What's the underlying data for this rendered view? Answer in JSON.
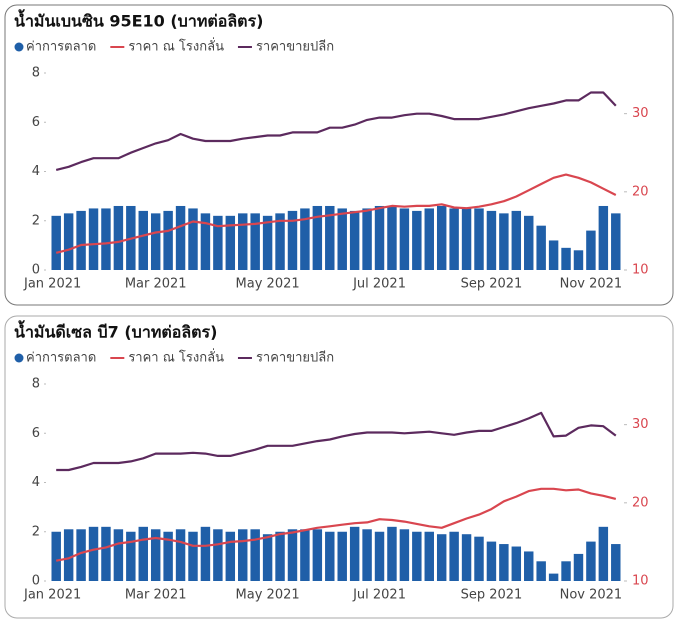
{
  "chart_data": [
    {
      "type": "bar-line",
      "title": "น้ำมันเบนซิน 95E10 (บาทต่อลิตร)",
      "categories": [
        "Jan 2021",
        null,
        null,
        null,
        null,
        null,
        null,
        null,
        "Mar 2021",
        null,
        null,
        null,
        null,
        null,
        null,
        null,
        null,
        "May 2021",
        null,
        null,
        null,
        null,
        null,
        null,
        null,
        null,
        "Jul 2021",
        null,
        null,
        null,
        null,
        null,
        null,
        null,
        null,
        "Sep 2021",
        null,
        null,
        null,
        null,
        null,
        null,
        null,
        "Nov 2021",
        null,
        null
      ],
      "ylim": [
        0,
        8
      ],
      "yticks": [
        0,
        2,
        4,
        6,
        8
      ],
      "y2lim": [
        10,
        35.2
      ],
      "y2ticks": [
        10,
        20,
        30
      ],
      "y2color": "#d9464f",
      "series": [
        {
          "name": "ค่าการตลาด",
          "type": "bar",
          "color": "#1f5fa8",
          "values": [
            2.2,
            2.3,
            2.4,
            2.5,
            2.5,
            2.6,
            2.6,
            2.4,
            2.3,
            2.4,
            2.6,
            2.5,
            2.3,
            2.2,
            2.2,
            2.3,
            2.3,
            2.2,
            2.3,
            2.4,
            2.5,
            2.6,
            2.6,
            2.5,
            2.4,
            2.5,
            2.6,
            2.6,
            2.5,
            2.4,
            2.5,
            2.6,
            2.5,
            2.5,
            2.5,
            2.4,
            2.3,
            2.4,
            2.2,
            1.8,
            1.2,
            0.9,
            0.8,
            1.6,
            2.6,
            2.3
          ]
        },
        {
          "name": "ราคา ณ โรงกลั่น",
          "type": "line",
          "axis": "y2",
          "color": "#d9464f",
          "values": [
            12.2,
            12.6,
            13.2,
            13.3,
            13.4,
            13.6,
            14.0,
            14.4,
            14.8,
            15.0,
            15.6,
            16.2,
            16.0,
            15.6,
            15.7,
            15.8,
            15.9,
            16.1,
            16.3,
            16.3,
            16.5,
            16.8,
            17.0,
            17.2,
            17.4,
            17.6,
            17.9,
            18.2,
            18.1,
            18.2,
            18.2,
            18.4,
            18.0,
            17.9,
            18.1,
            18.4,
            18.8,
            19.4,
            20.2,
            21.0,
            21.8,
            22.2,
            21.8,
            21.2,
            20.4,
            19.6
          ]
        },
        {
          "name": "ราคาขายปลีก",
          "type": "line",
          "axis": "y2",
          "color": "#5c2a5e",
          "values": [
            22.8,
            23.2,
            23.8,
            24.3,
            24.3,
            24.3,
            25.0,
            25.6,
            26.2,
            26.6,
            27.4,
            26.8,
            26.5,
            26.5,
            26.5,
            26.8,
            27.0,
            27.2,
            27.2,
            27.6,
            27.6,
            27.6,
            28.2,
            28.2,
            28.6,
            29.2,
            29.5,
            29.5,
            29.8,
            30.0,
            30.0,
            29.7,
            29.3,
            29.3,
            29.3,
            29.6,
            29.9,
            30.3,
            30.7,
            31.0,
            31.3,
            31.7,
            31.7,
            32.7,
            32.7,
            31.0
          ]
        }
      ]
    },
    {
      "type": "bar-line",
      "title": "น้ำมันดีเซล บี7 (บาทต่อลิตร)",
      "categories": [
        "Jan 2021",
        null,
        null,
        null,
        null,
        null,
        null,
        null,
        "Mar 2021",
        null,
        null,
        null,
        null,
        null,
        null,
        null,
        null,
        "May 2021",
        null,
        null,
        null,
        null,
        null,
        null,
        null,
        null,
        "Jul 2021",
        null,
        null,
        null,
        null,
        null,
        null,
        null,
        null,
        "Sep 2021",
        null,
        null,
        null,
        null,
        null,
        null,
        null,
        "Nov 2021",
        null,
        null
      ],
      "ylim": [
        0,
        8
      ],
      "yticks": [
        0,
        2,
        4,
        6,
        8
      ],
      "y2lim": [
        10,
        35.2
      ],
      "y2ticks": [
        10,
        20,
        30
      ],
      "y2color": "#d9464f",
      "series": [
        {
          "name": "ค่าการตลาด",
          "type": "bar",
          "color": "#1f5fa8",
          "values": [
            2.0,
            2.1,
            2.1,
            2.2,
            2.2,
            2.1,
            2.0,
            2.2,
            2.1,
            2.0,
            2.1,
            2.0,
            2.2,
            2.1,
            2.0,
            2.1,
            2.1,
            1.9,
            2.0,
            2.1,
            2.1,
            2.1,
            2.0,
            2.0,
            2.2,
            2.1,
            2.0,
            2.2,
            2.1,
            2.0,
            2.0,
            1.9,
            2.0,
            1.9,
            1.8,
            1.6,
            1.5,
            1.4,
            1.2,
            0.8,
            0.3,
            0.8,
            1.1,
            1.6,
            2.2,
            1.5
          ]
        },
        {
          "name": "ราคา ณ โรงกลั่น",
          "type": "line",
          "axis": "y2",
          "color": "#d9464f",
          "values": [
            12.6,
            12.9,
            13.6,
            14.0,
            14.3,
            14.8,
            15.0,
            15.3,
            15.5,
            15.3,
            15.0,
            14.5,
            14.5,
            14.7,
            15.0,
            15.1,
            15.3,
            15.6,
            16.0,
            16.2,
            16.5,
            16.8,
            17.0,
            17.2,
            17.4,
            17.5,
            17.9,
            17.8,
            17.6,
            17.3,
            17.0,
            16.8,
            17.4,
            18.0,
            18.5,
            19.2,
            20.2,
            20.8,
            21.5,
            21.8,
            21.8,
            21.6,
            21.7,
            21.2,
            20.9,
            20.5
          ]
        },
        {
          "name": "ราคาขายปลีก",
          "type": "line",
          "axis": "y2",
          "color": "#5c2a5e",
          "values": [
            24.2,
            24.2,
            24.6,
            25.1,
            25.1,
            25.1,
            25.3,
            25.7,
            26.3,
            26.3,
            26.3,
            26.4,
            26.3,
            26.0,
            26.0,
            26.4,
            26.8,
            27.3,
            27.3,
            27.3,
            27.6,
            27.9,
            28.1,
            28.5,
            28.8,
            29.0,
            29.0,
            29.0,
            28.9,
            29.0,
            29.1,
            28.9,
            28.7,
            29.0,
            29.2,
            29.2,
            29.7,
            30.2,
            30.8,
            31.5,
            28.5,
            28.6,
            29.6,
            29.9,
            29.8,
            28.6
          ]
        }
      ]
    }
  ]
}
